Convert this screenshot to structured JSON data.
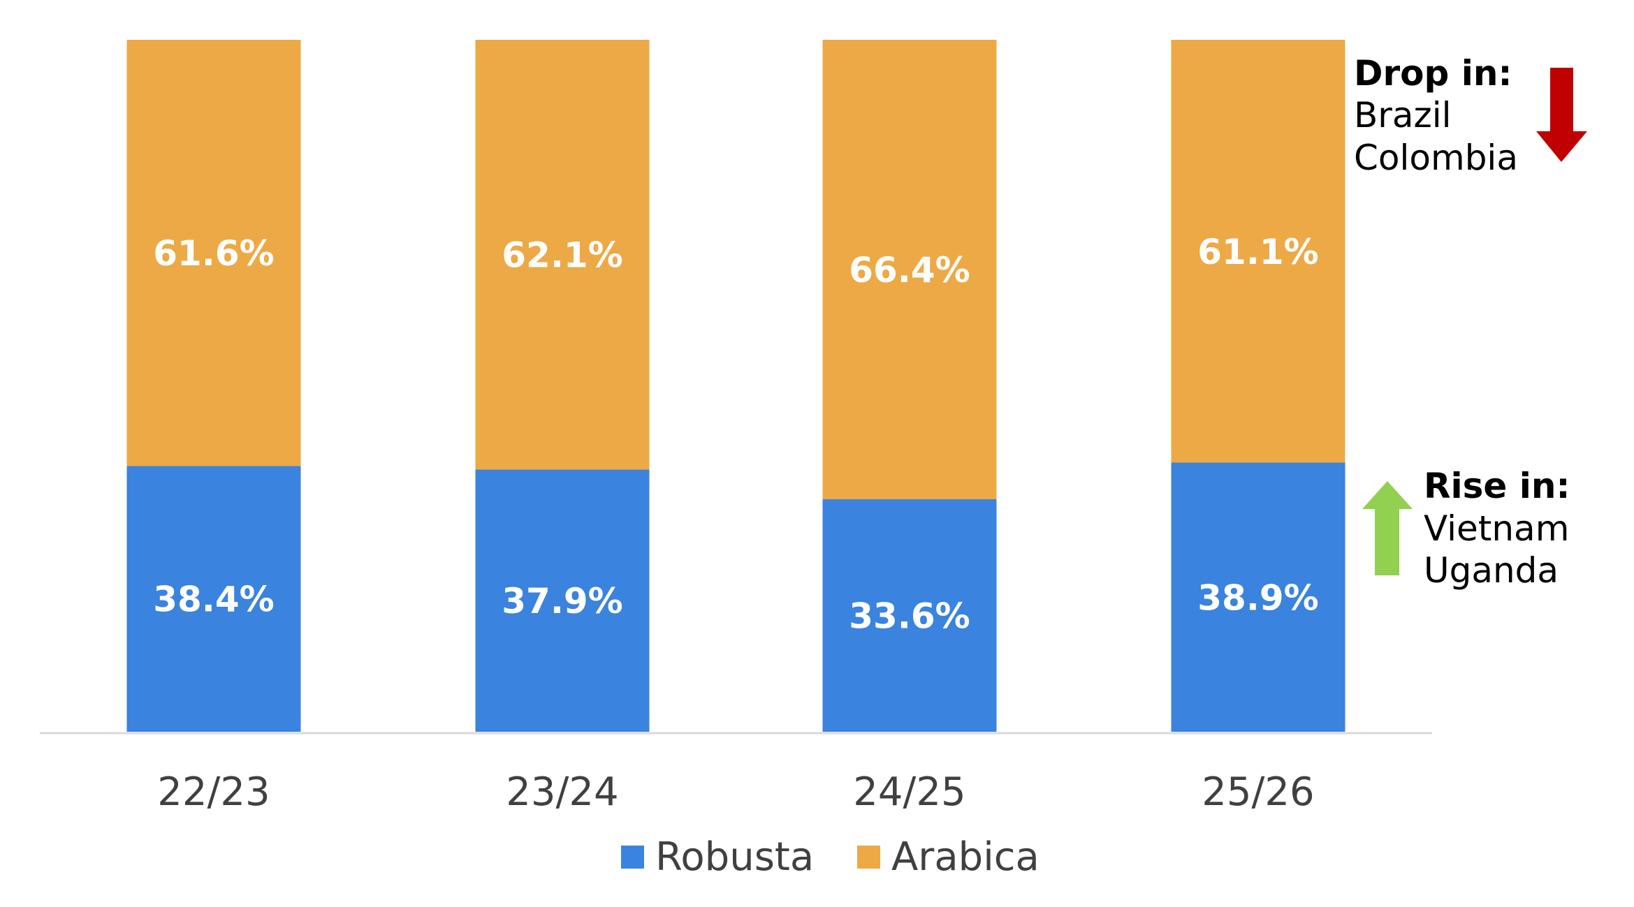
{
  "chart_data": {
    "type": "bar",
    "stacked": true,
    "normalized_percent": true,
    "categories": [
      "22/23",
      "23/24",
      "24/25",
      "25/26"
    ],
    "series": [
      {
        "name": "Robusta",
        "values": [
          38.4,
          37.9,
          33.6,
          38.9
        ],
        "labels": [
          "38.4%",
          "37.9%",
          "33.6%",
          "38.9%"
        ],
        "color": "#3A83DE"
      },
      {
        "name": "Arabica",
        "values": [
          61.6,
          62.1,
          66.4,
          61.1
        ],
        "labels": [
          "61.6%",
          "62.1%",
          "66.4%",
          "61.1%"
        ],
        "color": "#EDA945"
      }
    ],
    "ylim": [
      0,
      100
    ],
    "grid": false,
    "legend": "bottom-center",
    "annotations": [
      {
        "heading": "Drop in:",
        "lines": [
          "Brazil",
          "Colombia"
        ],
        "arrow": "down",
        "arrow_color": "#C00000"
      },
      {
        "heading": "Rise in:",
        "lines": [
          "Vietnam",
          "Uganda"
        ],
        "arrow": "up",
        "arrow_color": "#92D050"
      }
    ]
  }
}
